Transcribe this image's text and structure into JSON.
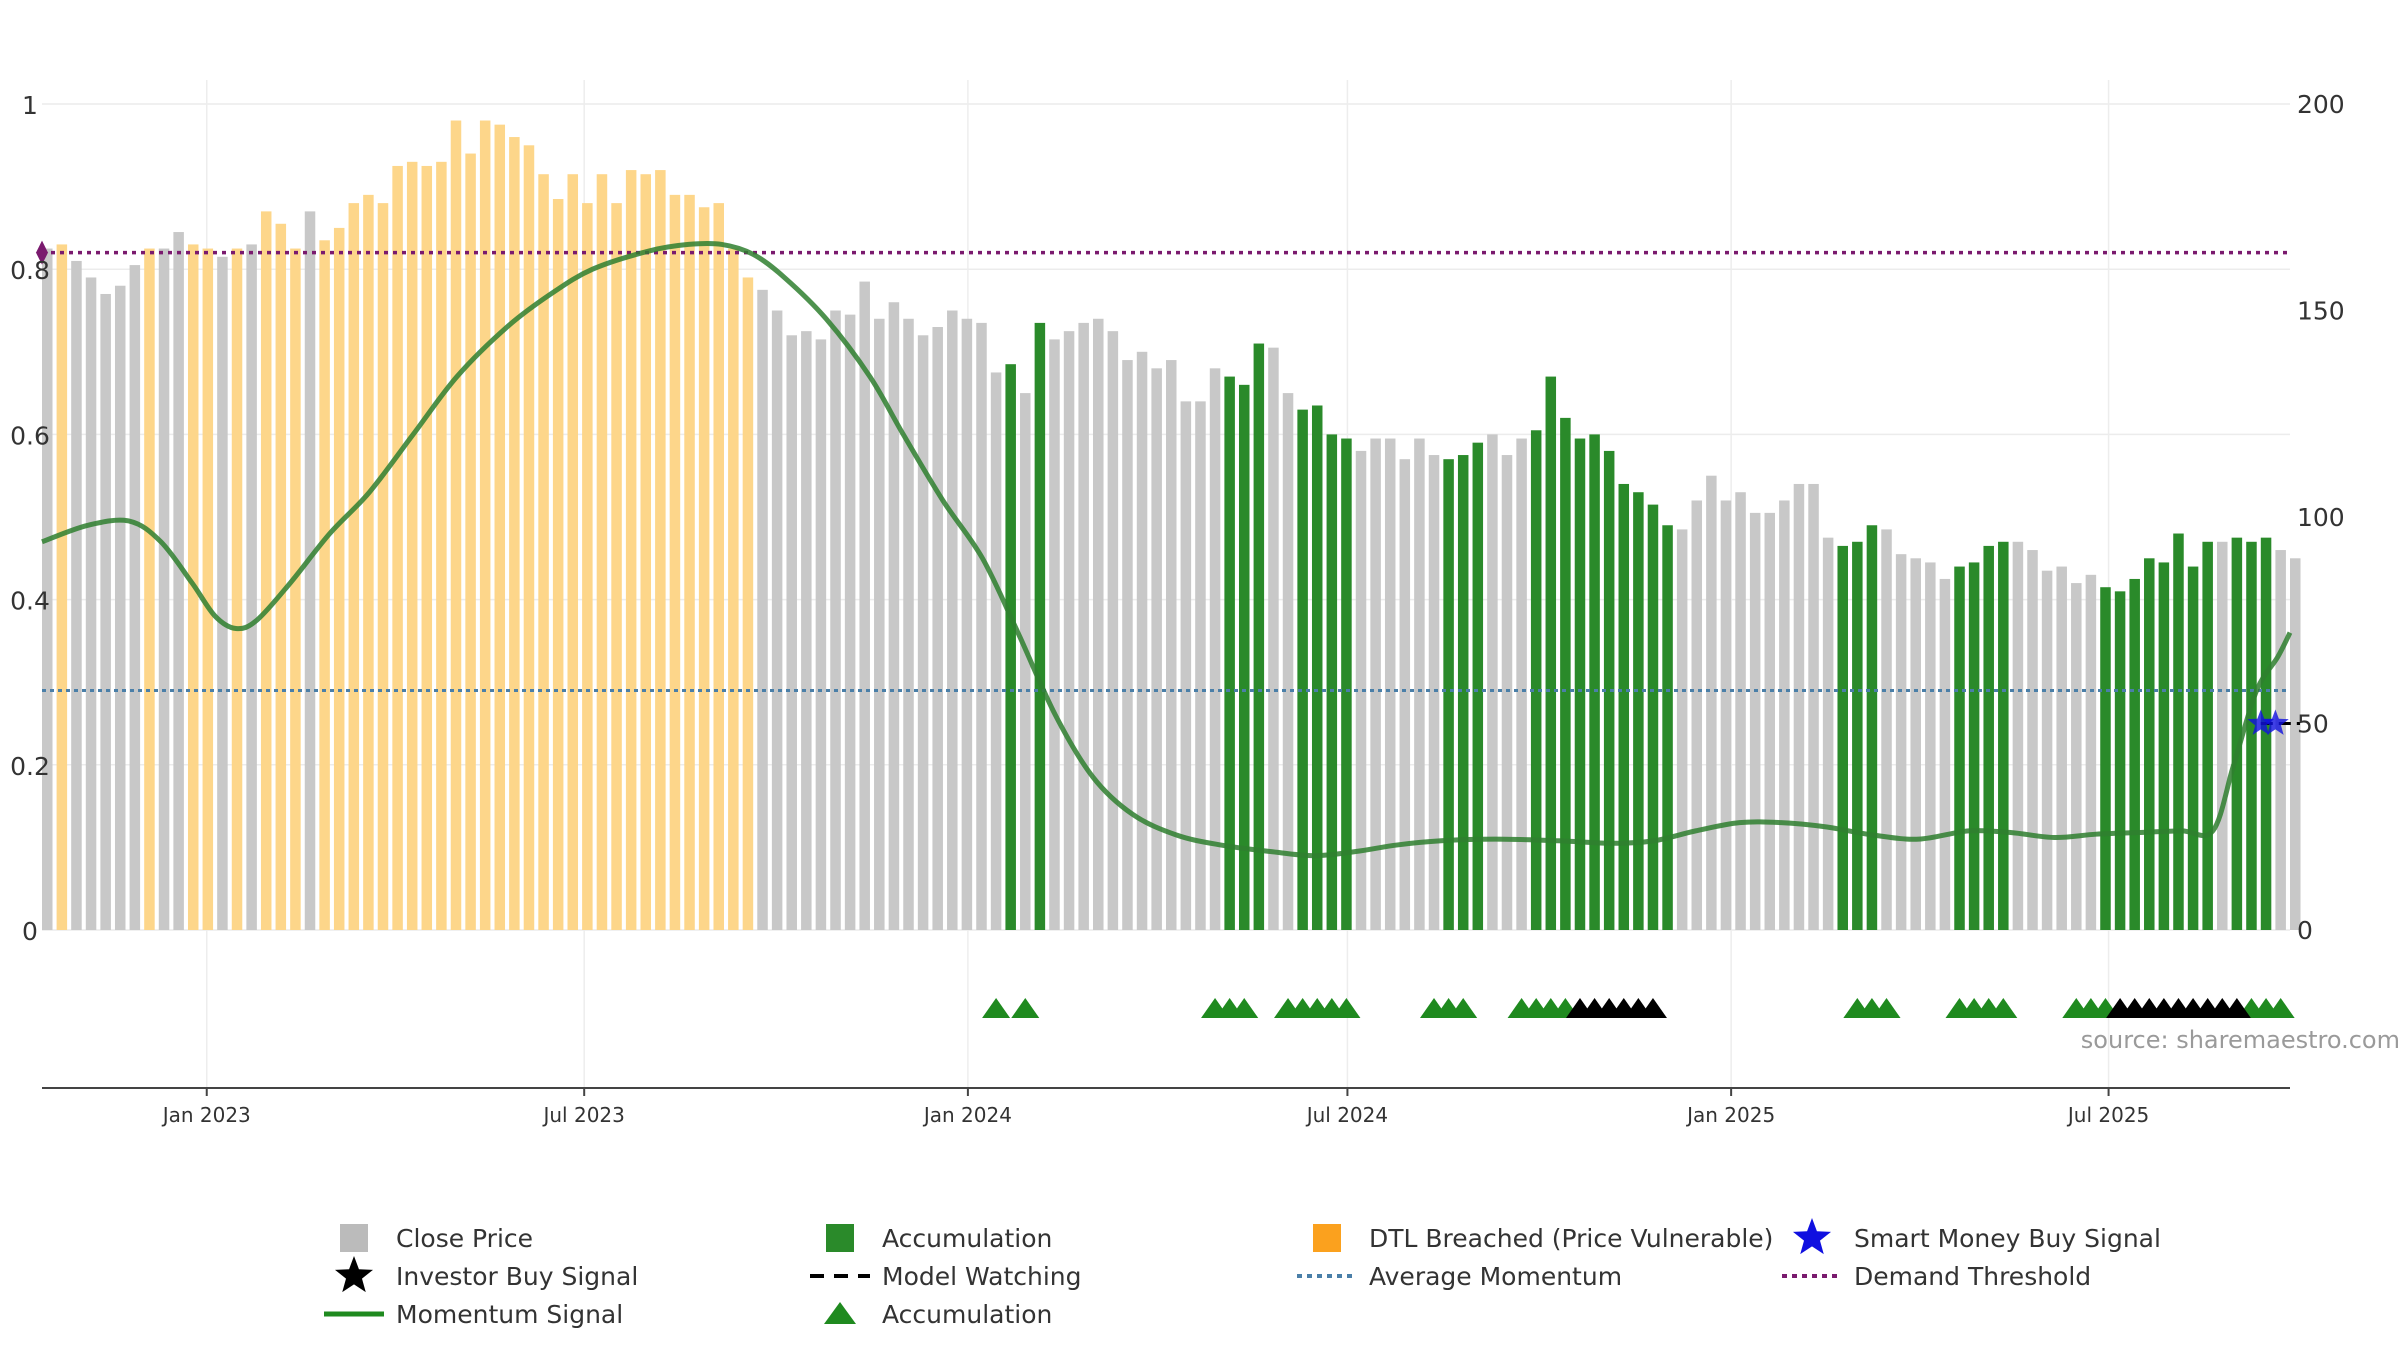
{
  "chart_data": {
    "type": "bar",
    "source_text": "source: sharemaestro.com",
    "left_axis": {
      "min": 0,
      "max": 1,
      "ticks": [
        {
          "v": 0,
          "label": "0"
        },
        {
          "v": 0.2,
          "label": "0.2"
        },
        {
          "v": 0.4,
          "label": "0.4"
        },
        {
          "v": 0.6,
          "label": "0.6"
        },
        {
          "v": 0.8,
          "label": "0.8"
        },
        {
          "v": 1,
          "label": "1"
        }
      ]
    },
    "right_axis": {
      "min": 0,
      "max": 200,
      "ticks": [
        {
          "v": 0,
          "label": "0"
        },
        {
          "v": 50,
          "label": "50"
        },
        {
          "v": 100,
          "label": "100"
        },
        {
          "v": 150,
          "label": "150"
        },
        {
          "v": 200,
          "label": "200"
        }
      ]
    },
    "x_axis": {
      "start": "2022-10-14",
      "end": "2025-09-26",
      "ticks": [
        {
          "date": "2023-01-01",
          "label": "Jan 2023"
        },
        {
          "date": "2023-07-01",
          "label": "Jul 2023"
        },
        {
          "date": "2024-01-01",
          "label": "Jan 2024"
        },
        {
          "date": "2024-07-01",
          "label": "Jul 2024"
        },
        {
          "date": "2025-01-01",
          "label": "Jan 2025"
        },
        {
          "date": "2025-07-01",
          "label": "Jul 2025"
        }
      ]
    },
    "bars": {
      "start_date": "2022-10-14",
      "interval_days": 7,
      "values": [
        165,
        166,
        162,
        158,
        154,
        156,
        161,
        165,
        165,
        169,
        166,
        165,
        163,
        165,
        166,
        174,
        171,
        165,
        174,
        167,
        170,
        176,
        178,
        176,
        185,
        186,
        185,
        186,
        196,
        188,
        196,
        195,
        192,
        190,
        183,
        177,
        183,
        176,
        183,
        176,
        184,
        183,
        184,
        178,
        178,
        175,
        176,
        165,
        158,
        155,
        150,
        144,
        145,
        143,
        150,
        149,
        157,
        148,
        152,
        148,
        144,
        146,
        150,
        148,
        147,
        135,
        137,
        130,
        147,
        143,
        145,
        147,
        148,
        145,
        138,
        140,
        136,
        138,
        128,
        128,
        136,
        134,
        132,
        142,
        141,
        130,
        126,
        127,
        120,
        119,
        116,
        119,
        119,
        114,
        119,
        115,
        114,
        115,
        118,
        120,
        115,
        119,
        121,
        134,
        124,
        119,
        120,
        116,
        108,
        106,
        103,
        98,
        97,
        104,
        110,
        104,
        106,
        101,
        101,
        104,
        108,
        108,
        95,
        93,
        94,
        98,
        97,
        91,
        90,
        89,
        85,
        88,
        89,
        93,
        94,
        94,
        92,
        87,
        88,
        84,
        86,
        83,
        82,
        85,
        90,
        89,
        96,
        88,
        94,
        94,
        95,
        94,
        95,
        92,
        90
      ]
    },
    "bar_classes": {
      "close": "Close Price",
      "acc": "Accumulation",
      "dtl": "DTL Breached (Price Vulnerable)",
      "dtl_weeks": [
        [
          1,
          1
        ],
        [
          7,
          7
        ],
        [
          10,
          11
        ],
        [
          13,
          13
        ],
        [
          15,
          17
        ],
        [
          19,
          48
        ]
      ],
      "acc_weeks": [
        [
          66,
          66
        ],
        [
          68,
          68
        ],
        [
          81,
          83
        ],
        [
          86,
          89
        ],
        [
          96,
          98
        ],
        [
          102,
          111
        ],
        [
          123,
          125
        ],
        [
          131,
          134
        ],
        [
          141,
          148
        ],
        [
          150,
          152
        ]
      ],
      "colors": {
        "close": "#c8c8c8",
        "acc": "#2a8a2a",
        "dtl": "#fdd68a"
      }
    },
    "momentum": {
      "name": "Momentum Signal",
      "color": "#2f7f2f",
      "points": [
        {
          "date": "2022-10-14",
          "value": 0.47
        },
        {
          "date": "2022-11-05",
          "value": 0.49
        },
        {
          "date": "2022-11-25",
          "value": 0.495
        },
        {
          "date": "2022-12-10",
          "value": 0.47
        },
        {
          "date": "2022-12-25",
          "value": 0.42
        },
        {
          "date": "2023-01-05",
          "value": 0.38
        },
        {
          "date": "2023-01-15",
          "value": 0.365
        },
        {
          "date": "2023-01-25",
          "value": 0.375
        },
        {
          "date": "2023-02-10",
          "value": 0.42
        },
        {
          "date": "2023-03-01",
          "value": 0.48
        },
        {
          "date": "2023-03-20",
          "value": 0.53
        },
        {
          "date": "2023-04-10",
          "value": 0.6
        },
        {
          "date": "2023-05-01",
          "value": 0.67
        },
        {
          "date": "2023-05-25",
          "value": 0.73
        },
        {
          "date": "2023-06-15",
          "value": 0.77
        },
        {
          "date": "2023-07-05",
          "value": 0.8
        },
        {
          "date": "2023-08-01",
          "value": 0.822
        },
        {
          "date": "2023-08-20",
          "value": 0.83
        },
        {
          "date": "2023-09-05",
          "value": 0.83
        },
        {
          "date": "2023-09-20",
          "value": 0.818
        },
        {
          "date": "2023-10-05",
          "value": 0.79
        },
        {
          "date": "2023-10-25",
          "value": 0.74
        },
        {
          "date": "2023-11-15",
          "value": 0.67
        },
        {
          "date": "2023-12-01",
          "value": 0.6
        },
        {
          "date": "2023-12-20",
          "value": 0.52
        },
        {
          "date": "2024-01-08",
          "value": 0.45
        },
        {
          "date": "2024-01-25",
          "value": 0.36
        },
        {
          "date": "2024-02-12",
          "value": 0.26
        },
        {
          "date": "2024-03-01",
          "value": 0.185
        },
        {
          "date": "2024-03-20",
          "value": 0.14
        },
        {
          "date": "2024-04-10",
          "value": 0.115
        },
        {
          "date": "2024-05-01",
          "value": 0.103
        },
        {
          "date": "2024-05-25",
          "value": 0.095
        },
        {
          "date": "2024-06-15",
          "value": 0.09
        },
        {
          "date": "2024-07-05",
          "value": 0.095
        },
        {
          "date": "2024-07-25",
          "value": 0.103
        },
        {
          "date": "2024-08-15",
          "value": 0.108
        },
        {
          "date": "2024-09-10",
          "value": 0.11
        },
        {
          "date": "2024-10-10",
          "value": 0.108
        },
        {
          "date": "2024-11-05",
          "value": 0.105
        },
        {
          "date": "2024-11-25",
          "value": 0.108
        },
        {
          "date": "2024-12-15",
          "value": 0.12
        },
        {
          "date": "2025-01-05",
          "value": 0.13
        },
        {
          "date": "2025-01-25",
          "value": 0.13
        },
        {
          "date": "2025-02-15",
          "value": 0.125
        },
        {
          "date": "2025-03-10",
          "value": 0.115
        },
        {
          "date": "2025-04-01",
          "value": 0.11
        },
        {
          "date": "2025-04-25",
          "value": 0.12
        },
        {
          "date": "2025-05-15",
          "value": 0.118
        },
        {
          "date": "2025-06-05",
          "value": 0.112
        },
        {
          "date": "2025-06-25",
          "value": 0.116
        },
        {
          "date": "2025-07-15",
          "value": 0.118
        },
        {
          "date": "2025-08-05",
          "value": 0.12
        },
        {
          "date": "2025-08-20",
          "value": 0.12
        },
        {
          "date": "2025-08-30",
          "value": 0.2
        },
        {
          "date": "2025-09-10",
          "value": 0.29
        },
        {
          "date": "2025-09-20",
          "value": 0.33
        },
        {
          "date": "2025-09-26",
          "value": 0.36
        }
      ]
    },
    "average_momentum": {
      "name": "Average Momentum",
      "value": 0.29,
      "color": "#4a7fa8"
    },
    "demand_threshold": {
      "name": "Demand Threshold",
      "value": 0.82,
      "color": "#7a1a6e"
    },
    "model_watching": {
      "name": "Model Watching",
      "start": "2025-09-12",
      "end": "2025-09-26",
      "value": 0.25
    },
    "smart_money_buy": {
      "name": "Smart Money Buy Signal",
      "dates": [
        "2025-09-12",
        "2025-09-19"
      ],
      "value": 0.25,
      "color": "#1010e0"
    },
    "triangles": {
      "green": [
        [
          65,
          65
        ],
        [
          67,
          67
        ],
        [
          80,
          82
        ],
        [
          85,
          89
        ],
        [
          95,
          97
        ],
        [
          101,
          104
        ],
        [
          124,
          126
        ],
        [
          131,
          134
        ],
        [
          139,
          141
        ],
        [
          151,
          153
        ]
      ],
      "black": [
        [
          105,
          110
        ],
        [
          142,
          150
        ]
      ]
    },
    "legend": [
      {
        "label": "Close Price",
        "marker": "square",
        "color": "#bbbbbb"
      },
      {
        "label": "Accumulation",
        "marker": "square",
        "color": "#2a8a2a"
      },
      {
        "label": "DTL Breached (Price Vulnerable)",
        "marker": "square",
        "color": "#fba11e"
      },
      {
        "label": "Smart Money Buy Signal",
        "marker": "star",
        "color": "#1010e0"
      },
      {
        "label": "Investor Buy Signal",
        "marker": "star",
        "color": "#000000"
      },
      {
        "label": "Model Watching",
        "marker": "dash",
        "color": "#000000"
      },
      {
        "label": "Average Momentum",
        "marker": "dotted",
        "color": "#4a7fa8"
      },
      {
        "label": "Demand Threshold",
        "marker": "dotted",
        "color": "#7a1a6e"
      },
      {
        "label": "Momentum Signal",
        "marker": "line",
        "color": "#1f8a1f"
      },
      {
        "label": "Accumulation",
        "marker": "triangle",
        "color": "#1f8a1f"
      }
    ]
  }
}
